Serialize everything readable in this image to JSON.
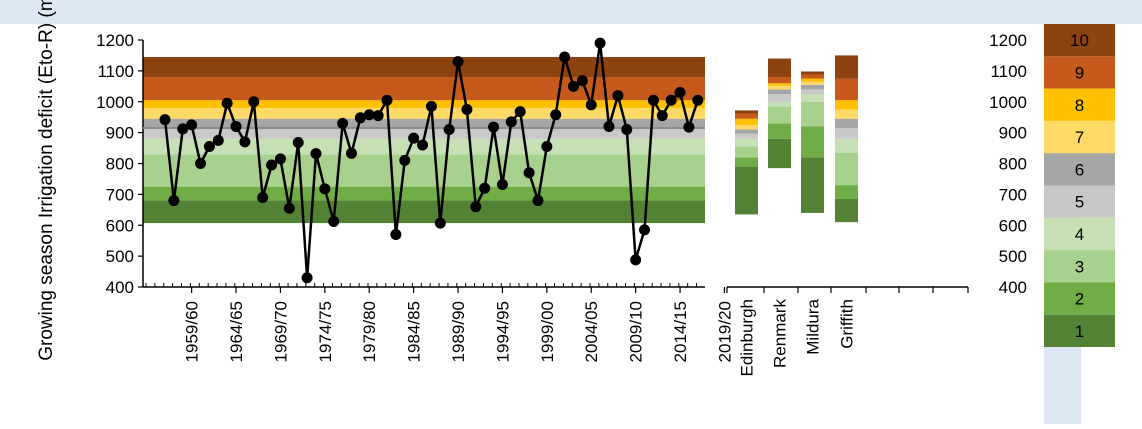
{
  "chart_data": [
    {
      "type": "line",
      "ylabel": "Growing season Irrigation deficit (Eto-R) (mm)",
      "ylim": [
        400,
        1200
      ],
      "yticks": [
        400,
        500,
        600,
        700,
        800,
        900,
        1000,
        1100,
        1200
      ],
      "x_start_year": 1956,
      "x_labels": [
        "1959/60",
        "1964/65",
        "1969/70",
        "1974/75",
        "1979/80",
        "1984/85",
        "1989/90",
        "1994/95",
        "1999/00",
        "2004/05",
        "2009/10",
        "2014/15",
        "2019/20"
      ],
      "series": [
        {
          "color": "#000000",
          "values": [
            942,
            680,
            912,
            925,
            800,
            855,
            875,
            995,
            920,
            870,
            1000,
            690,
            795,
            815,
            655,
            868,
            430,
            832,
            718,
            612,
            930,
            833,
            948,
            958,
            955,
            1005,
            570,
            810,
            882,
            860,
            985,
            607,
            910,
            1130,
            975,
            660,
            720,
            918,
            732,
            935,
            968,
            770,
            680,
            855,
            958,
            1145,
            1050,
            1068,
            990,
            1190,
            920,
            1020,
            910,
            488,
            585,
            1005,
            955,
            1005,
            1030,
            918,
            1005
          ]
        }
      ],
      "reference_line": 915,
      "decile_bands": [
        {
          "decile": 1,
          "from": 607,
          "to": 680
        },
        {
          "decile": 2,
          "from": 680,
          "to": 725
        },
        {
          "decile": 3,
          "from": 725,
          "to": 830
        },
        {
          "decile": 4,
          "from": 830,
          "to": 880
        },
        {
          "decile": 5,
          "from": 880,
          "to": 915
        },
        {
          "decile": 6,
          "from": 915,
          "to": 945
        },
        {
          "decile": 7,
          "from": 945,
          "to": 980
        },
        {
          "decile": 8,
          "from": 980,
          "to": 1005
        },
        {
          "decile": 9,
          "from": 1005,
          "to": 1080
        },
        {
          "decile": 10,
          "from": 1080,
          "to": 1145
        }
      ]
    },
    {
      "type": "bar",
      "ylim": [
        400,
        1200
      ],
      "yticks": [
        400,
        500,
        600,
        700,
        800,
        900,
        1000,
        1100,
        1200
      ],
      "categories": [
        "Edinburgh",
        "Renmark",
        "Mildura",
        "Griffith"
      ],
      "stacks": [
        {
          "site": "Edinburgh",
          "bounds": [
            635,
            790,
            820,
            855,
            880,
            897,
            910,
            925,
            945,
            962,
            972
          ]
        },
        {
          "site": "Renmark",
          "bounds": [
            785,
            880,
            930,
            985,
            1000,
            1025,
            1040,
            1052,
            1060,
            1080,
            1140
          ]
        },
        {
          "site": "Mildura",
          "bounds": [
            640,
            820,
            920,
            1000,
            1025,
            1040,
            1055,
            1065,
            1075,
            1088,
            1098
          ]
        },
        {
          "site": "Griffith",
          "bounds": [
            610,
            685,
            730,
            835,
            880,
            915,
            945,
            975,
            1005,
            1075,
            1150
          ]
        }
      ]
    }
  ],
  "legend": {
    "items": [
      "10",
      "9",
      "8",
      "7",
      "6",
      "5",
      "4",
      "3",
      "2",
      "1"
    ],
    "colors": [
      "#8c4310",
      "#c55a1c",
      "#ffc000",
      "#ffd966",
      "#a6a6a6",
      "#c8c8c8",
      "#c5e0b4",
      "#a9d18e",
      "#70ad47",
      "#548235"
    ]
  },
  "colors": {
    "background_band": "#dde8f4",
    "decile_1": "#548235",
    "decile_2": "#70ad47",
    "decile_3": "#a9d18e",
    "decile_4": "#c5e0b4",
    "decile_5": "#c8c8c8",
    "decile_6": "#a6a6a6",
    "decile_7": "#ffd966",
    "decile_8": "#ffc000",
    "decile_9": "#c55a1c",
    "decile_10": "#8c4310",
    "reference_line": "#8c8c8c"
  }
}
